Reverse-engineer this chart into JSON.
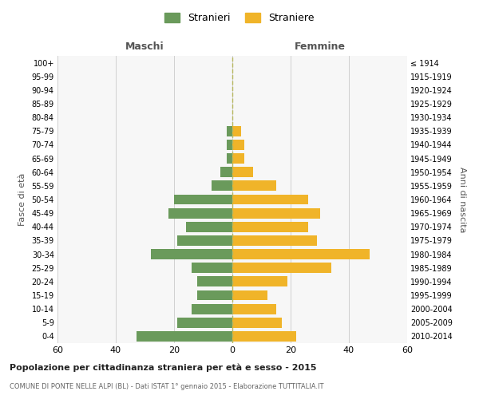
{
  "age_groups": [
    "0-4",
    "5-9",
    "10-14",
    "15-19",
    "20-24",
    "25-29",
    "30-34",
    "35-39",
    "40-44",
    "45-49",
    "50-54",
    "55-59",
    "60-64",
    "65-69",
    "70-74",
    "75-79",
    "80-84",
    "85-89",
    "90-94",
    "95-99",
    "100+"
  ],
  "birth_years": [
    "2010-2014",
    "2005-2009",
    "2000-2004",
    "1995-1999",
    "1990-1994",
    "1985-1989",
    "1980-1984",
    "1975-1979",
    "1970-1974",
    "1965-1969",
    "1960-1964",
    "1955-1959",
    "1950-1954",
    "1945-1949",
    "1940-1944",
    "1935-1939",
    "1930-1934",
    "1925-1929",
    "1920-1924",
    "1915-1919",
    "≤ 1914"
  ],
  "maschi": [
    33,
    19,
    14,
    12,
    12,
    14,
    28,
    19,
    16,
    22,
    20,
    7,
    4,
    2,
    2,
    2,
    0,
    0,
    0,
    0,
    0
  ],
  "femmine": [
    22,
    17,
    15,
    12,
    19,
    34,
    47,
    29,
    26,
    30,
    26,
    15,
    7,
    4,
    4,
    3,
    0,
    0,
    0,
    0,
    0
  ],
  "color_maschi": "#6a9a5b",
  "color_femmine": "#f0b429",
  "bg_color": "#ffffff",
  "plot_bg": "#f7f7f7",
  "grid_color": "#d0d0d0",
  "title1": "Popolazione per cittadinanza straniera per età e sesso - 2015",
  "title2": "COMUNE DI PONTE NELLE ALPI (BL) - Dati ISTAT 1° gennaio 2015 - Elaborazione TUTTITALIA.IT",
  "header_left": "Maschi",
  "header_right": "Femmine",
  "ylabel_left": "Fasce di età",
  "ylabel_right": "Anni di nascita",
  "legend_maschi": "Stranieri",
  "legend_femmine": "Straniere",
  "xlim": 60
}
